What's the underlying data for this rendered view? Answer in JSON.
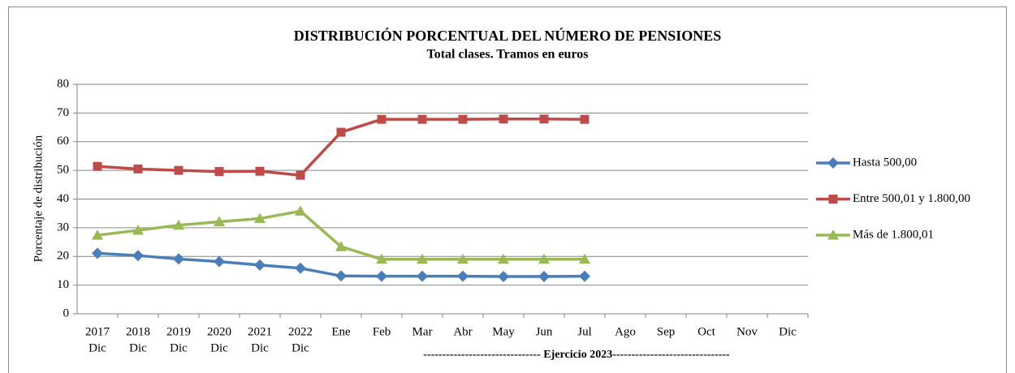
{
  "chart_data": {
    "type": "line",
    "title": "DISTRIBUCIÓN PORCENTUAL DEL NÚMERO DE PENSIONES",
    "subtitle": "Total clases. Tramos en euros",
    "y_label": "Porcentaje de distribución",
    "annotation": "------------------------------- Ejercicio 2023-------------------------------",
    "categories": [
      [
        "2017",
        "Dic"
      ],
      [
        "2018",
        "Dic"
      ],
      [
        "2019",
        "Dic"
      ],
      [
        "2020",
        "Dic"
      ],
      [
        "2021",
        "Dic"
      ],
      [
        "2022",
        "Dic"
      ],
      [
        "Ene"
      ],
      [
        "Feb"
      ],
      [
        "Mar"
      ],
      [
        "Abr"
      ],
      [
        "May"
      ],
      [
        "Jun"
      ],
      [
        "Jul"
      ],
      [
        "Ago"
      ],
      [
        "Sep"
      ],
      [
        "Oct"
      ],
      [
        "Nov"
      ],
      [
        "Dic"
      ]
    ],
    "series": [
      {
        "name": "Hasta 500,00",
        "color": "#4a7ebb",
        "marker": "diamond",
        "values": [
          21.1,
          20.3,
          19.1,
          18.2,
          17.0,
          15.9,
          13.2,
          13.1,
          13.1,
          13.1,
          13.0,
          13.0,
          13.1,
          null,
          null,
          null,
          null,
          null
        ]
      },
      {
        "name": "Entre 500,01 y 1.800,00",
        "color": "#be4b48",
        "marker": "square",
        "values": [
          51.4,
          50.5,
          50.0,
          49.6,
          49.7,
          48.3,
          63.3,
          67.8,
          67.8,
          67.8,
          67.9,
          67.9,
          67.8,
          null,
          null,
          null,
          null,
          null
        ]
      },
      {
        "name": "Más de 1.800,01",
        "color": "#98b954",
        "marker": "triangle",
        "values": [
          27.4,
          29.1,
          30.9,
          32.1,
          33.2,
          35.8,
          23.4,
          19.0,
          19.0,
          19.0,
          19.0,
          19.0,
          19.0,
          null,
          null,
          null,
          null,
          null
        ]
      }
    ],
    "ylim": [
      0,
      80
    ],
    "yticks": [
      0,
      10,
      20,
      30,
      40,
      50,
      60,
      70,
      80
    ],
    "grid": true,
    "legend": "right"
  }
}
